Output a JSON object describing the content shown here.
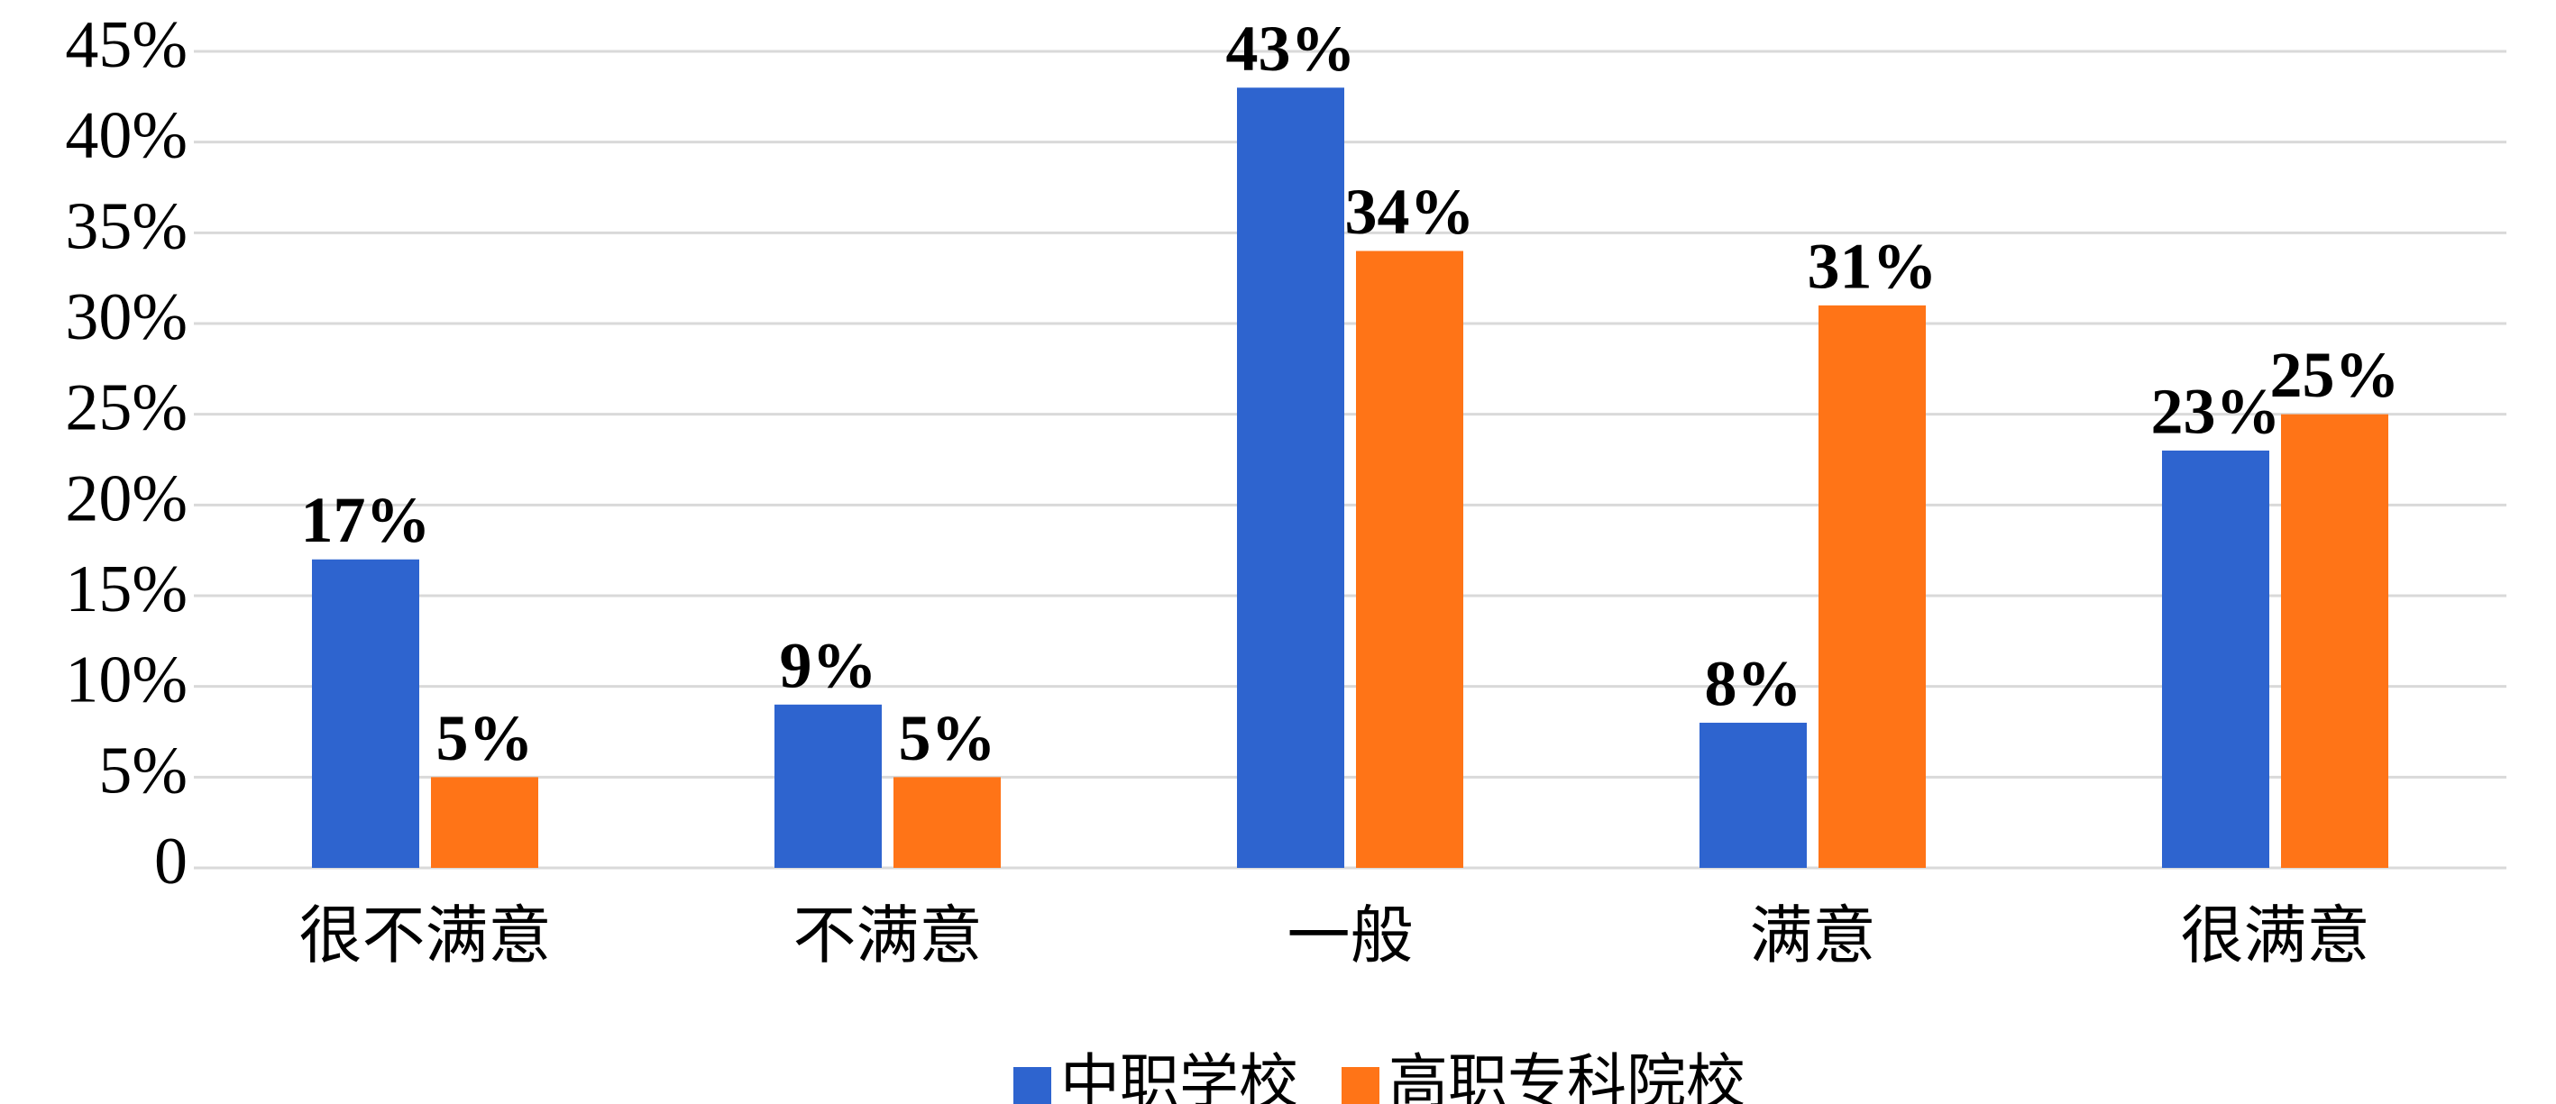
{
  "chart_data": {
    "type": "bar",
    "categories": [
      "很不满意",
      "不满意",
      "一般",
      "满意",
      "很满意"
    ],
    "series": [
      {
        "name": "中职学校",
        "color": "#2e64cf",
        "values": [
          17,
          9,
          43,
          8,
          23
        ],
        "value_labels": [
          "17%",
          "9%",
          "43%",
          "8%",
          "23%"
        ]
      },
      {
        "name": "高职专科院校",
        "color": "#ff7417",
        "values": [
          5,
          5,
          34,
          31,
          25
        ],
        "value_labels": [
          "5%",
          "5%",
          "34%",
          "31%",
          "25%"
        ]
      }
    ],
    "ylim": [
      0,
      45
    ],
    "yticks": [
      0,
      {
        "value": 5,
        "label": "5%"
      },
      {
        "value": 10,
        "label": "10%"
      },
      {
        "value": 15,
        "label": "15%"
      },
      {
        "value": 20,
        "label": "20%"
      },
      {
        "value": 25,
        "label": "25%"
      },
      {
        "value": 30,
        "label": "30%"
      },
      {
        "value": 35,
        "label": "35%"
      },
      {
        "value": 40,
        "label": "40%"
      },
      {
        "value": 45,
        "label": "45%"
      }
    ],
    "grid": true,
    "legend": "bottom"
  }
}
